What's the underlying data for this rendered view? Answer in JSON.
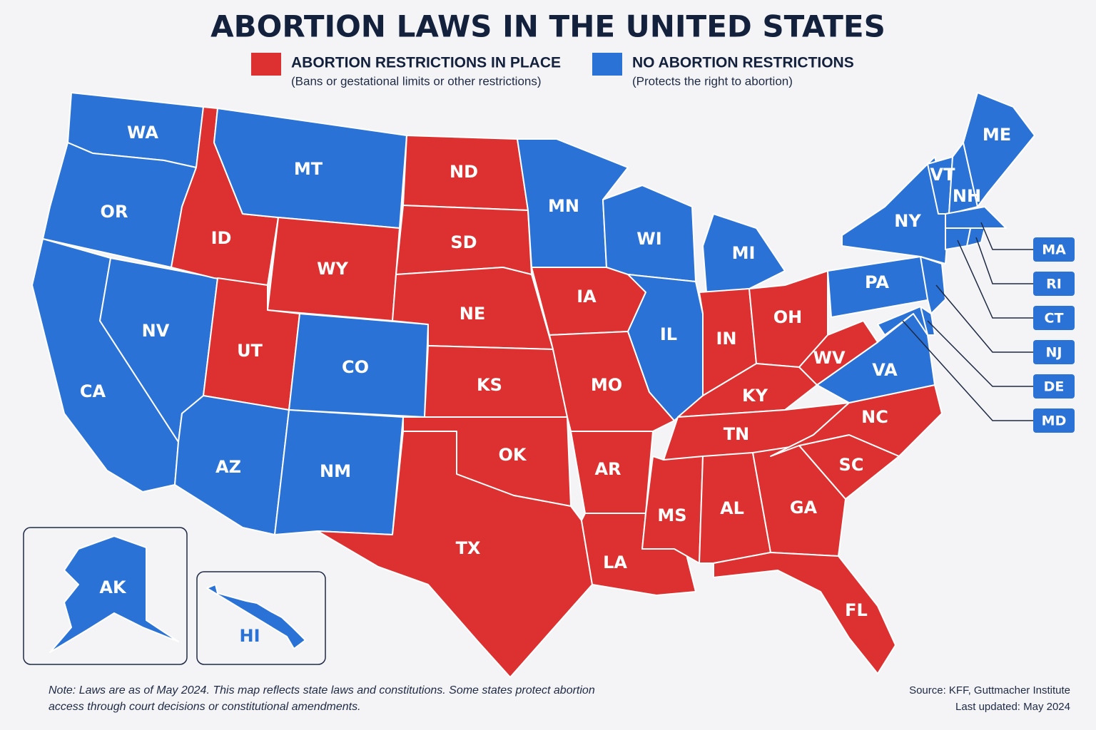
{
  "title": "ABORTION LAWS IN THE UNITED STATES",
  "legend": [
    {
      "label": "ABORTION RESTRICTIONS IN PLACE",
      "description": "(Bans or gestational limits or other restrictions)",
      "color": "#dd3030"
    },
    {
      "label": "NO ABORTION RESTRICTIONS",
      "description": "(Protects the right to abortion)",
      "color": "#2a72d6"
    }
  ],
  "states": [
    {
      "abbr": "WA",
      "group": 1
    },
    {
      "abbr": "OR",
      "group": 1
    },
    {
      "abbr": "CA",
      "group": 1
    },
    {
      "abbr": "NV",
      "group": 1
    },
    {
      "abbr": "ID",
      "group": 0
    },
    {
      "abbr": "MT",
      "group": 1
    },
    {
      "abbr": "WY",
      "group": 0
    },
    {
      "abbr": "UT",
      "group": 0
    },
    {
      "abbr": "CO",
      "group": 1
    },
    {
      "abbr": "AZ",
      "group": 1
    },
    {
      "abbr": "NM",
      "group": 1
    },
    {
      "abbr": "ND",
      "group": 0
    },
    {
      "abbr": "SD",
      "group": 0
    },
    {
      "abbr": "NE",
      "group": 0
    },
    {
      "abbr": "KS",
      "group": 0
    },
    {
      "abbr": "OK",
      "group": 0
    },
    {
      "abbr": "TX",
      "group": 0
    },
    {
      "abbr": "MN",
      "group": 1
    },
    {
      "abbr": "IA",
      "group": 0
    },
    {
      "abbr": "MO",
      "group": 0
    },
    {
      "abbr": "AR",
      "group": 0
    },
    {
      "abbr": "LA",
      "group": 0
    },
    {
      "abbr": "WI",
      "group": 1
    },
    {
      "abbr": "IL",
      "group": 1
    },
    {
      "abbr": "MI",
      "group": 1
    },
    {
      "abbr": "IN",
      "group": 0
    },
    {
      "abbr": "OH",
      "group": 0
    },
    {
      "abbr": "KY",
      "group": 0
    },
    {
      "abbr": "TN",
      "group": 0
    },
    {
      "abbr": "MS",
      "group": 0
    },
    {
      "abbr": "AL",
      "group": 0
    },
    {
      "abbr": "GA",
      "group": 0
    },
    {
      "abbr": "FL",
      "group": 0
    },
    {
      "abbr": "SC",
      "group": 0
    },
    {
      "abbr": "NC",
      "group": 0
    },
    {
      "abbr": "VA",
      "group": 1
    },
    {
      "abbr": "WV",
      "group": 0
    },
    {
      "abbr": "PA",
      "group": 1
    },
    {
      "abbr": "NY",
      "group": 1
    },
    {
      "abbr": "VT",
      "group": 1
    },
    {
      "abbr": "NH",
      "group": 1
    },
    {
      "abbr": "ME",
      "group": 1
    },
    {
      "abbr": "MA",
      "group": 1
    },
    {
      "abbr": "RI",
      "group": 1
    },
    {
      "abbr": "CT",
      "group": 1
    },
    {
      "abbr": "NJ",
      "group": 1
    },
    {
      "abbr": "DE",
      "group": 1
    },
    {
      "abbr": "MD",
      "group": 1
    },
    {
      "abbr": "AK",
      "group": 1
    },
    {
      "abbr": "HI",
      "group": 1
    }
  ],
  "note": [
    "Note: Laws are as of May 2024. This map reflects state laws and constitutions. Some states protect abortion",
    "access through court decisions or constitutional amendments."
  ],
  "source": [
    "Source: KFF, Guttmacher Institute",
    "Last updated: May 2024"
  ]
}
